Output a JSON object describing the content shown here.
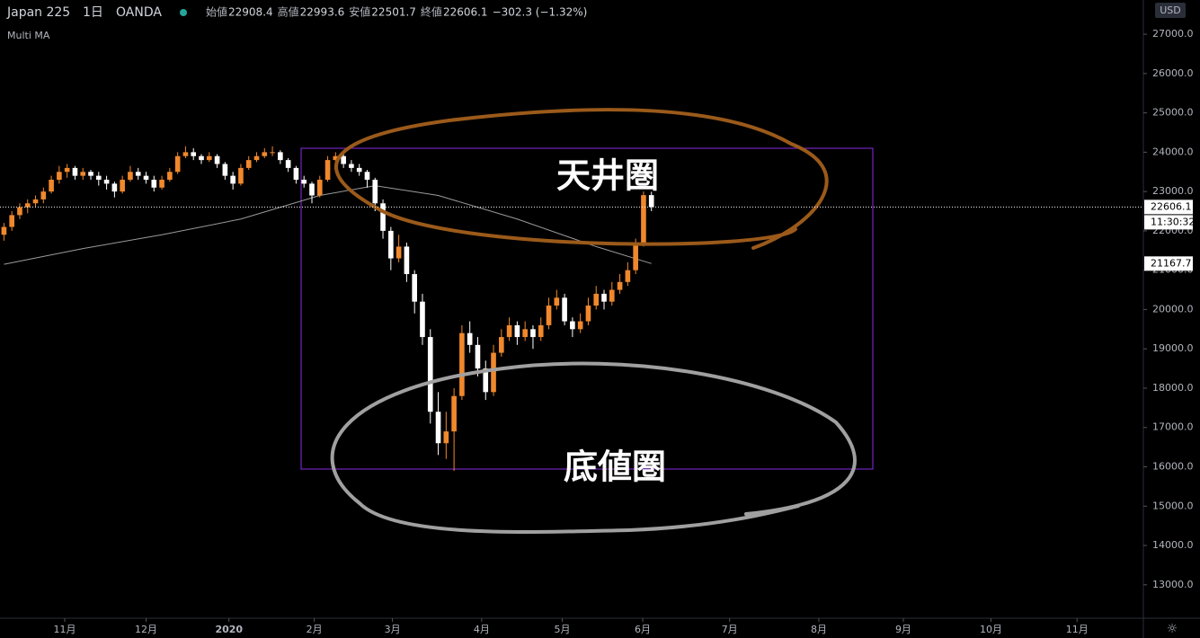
{
  "chart_data": {
    "type": "candlestick",
    "symbol": "Japan 225",
    "interval": "1日",
    "source": "OANDA",
    "ohlc_labels": [
      "始値",
      "高値",
      "安値",
      "終値"
    ],
    "change_label": "−302.3 (−1.32%)",
    "indicator": "Multi MA",
    "currency": "USD",
    "countdown": "11:30:32",
    "annotations": [
      "天井圏",
      "底値圏"
    ],
    "up_color": "#f0882c",
    "down_color": "#ffffff",
    "categories": [
      null,
      null,
      null,
      null,
      null,
      null,
      null,
      null,
      null,
      null,
      null,
      null,
      null,
      null,
      null,
      null,
      null,
      null,
      null,
      null,
      null,
      null,
      null,
      null,
      null,
      null,
      null,
      null,
      null,
      null,
      null,
      null,
      null,
      null,
      null,
      null,
      null,
      null,
      null,
      null,
      null,
      null,
      null,
      null,
      null,
      null,
      null,
      null,
      null,
      null,
      null,
      null,
      null,
      null,
      null,
      null,
      null,
      null,
      null,
      null,
      null,
      null,
      null,
      null,
      null,
      null,
      null,
      null,
      null,
      null,
      null,
      null,
      null,
      null,
      null,
      null,
      null,
      null,
      null,
      null,
      null,
      null,
      null
    ],
    "open": [
      21900,
      22100,
      22400,
      22600,
      22700,
      22800,
      23000,
      23300,
      23500,
      23600,
      23400,
      23500,
      23400,
      23300,
      23200,
      23000,
      23300,
      23500,
      23400,
      23300,
      23100,
      23300,
      23500,
      23900,
      24000,
      23900,
      23800,
      23900,
      23700,
      23400,
      23200,
      23600,
      23800,
      23900,
      24000,
      24000,
      23800,
      23600,
      23300,
      23200,
      22900,
      23300,
      23800,
      23900,
      23700,
      23600,
      23500,
      23300,
      22700,
      22000,
      21300,
      21600,
      20900,
      20200,
      19300,
      17400,
      16600,
      16900,
      17800,
      19400,
      19100,
      18500,
      17900,
      18900,
      19300,
      19600,
      19300,
      19500,
      19300,
      19600,
      20100,
      20300,
      19700,
      19500,
      19700,
      20100,
      20400,
      20200,
      20500,
      20700,
      21000,
      21700,
      22908.4
    ],
    "high": [
      22200,
      22500,
      22700,
      22800,
      22900,
      23100,
      23400,
      23650,
      23700,
      23650,
      23600,
      23550,
      23500,
      23400,
      23250,
      23400,
      23650,
      23600,
      23500,
      23400,
      23400,
      23600,
      24000,
      24150,
      24100,
      23950,
      24000,
      23950,
      23750,
      23500,
      23700,
      23900,
      24000,
      24100,
      24150,
      24050,
      23850,
      23650,
      23400,
      23250,
      23400,
      23900,
      24000,
      23950,
      23800,
      23700,
      23550,
      23350,
      22800,
      22100,
      21900,
      21700,
      21000,
      20400,
      19500,
      17900,
      17400,
      18000,
      19600,
      19700,
      19300,
      18700,
      19100,
      19500,
      19800,
      19700,
      19700,
      19600,
      19800,
      20300,
      20500,
      20400,
      19800,
      19900,
      20300,
      20600,
      20500,
      20700,
      20900,
      21200,
      21800,
      23000,
      22993.6
    ],
    "low": [
      21750,
      22000,
      22300,
      22450,
      22600,
      22700,
      22950,
      23200,
      23350,
      23300,
      23300,
      23300,
      23150,
      23050,
      22850,
      22950,
      23250,
      23300,
      23200,
      23000,
      23050,
      23250,
      23450,
      23850,
      23800,
      23700,
      23750,
      23600,
      23300,
      23050,
      23150,
      23550,
      23750,
      23850,
      23900,
      23700,
      23500,
      23200,
      23100,
      22700,
      22850,
      23250,
      23750,
      23600,
      23500,
      23400,
      23100,
      22500,
      21800,
      21000,
      21200,
      20700,
      19900,
      19100,
      17100,
      16300,
      16200,
      15900,
      17700,
      18900,
      18300,
      17700,
      17800,
      18800,
      19200,
      19100,
      19200,
      19000,
      19200,
      19500,
      20000,
      19600,
      19300,
      19400,
      19600,
      20000,
      20000,
      20100,
      20400,
      20600,
      20900,
      21600,
      22501.7
    ],
    "close": [
      22100,
      22400,
      22600,
      22700,
      22800,
      23000,
      23300,
      23500,
      23600,
      23400,
      23500,
      23400,
      23300,
      23200,
      23000,
      23300,
      23500,
      23400,
      23300,
      23100,
      23300,
      23500,
      23900,
      24000,
      23900,
      23800,
      23900,
      23700,
      23400,
      23200,
      23600,
      23800,
      23900,
      24000,
      24000,
      23800,
      23600,
      23300,
      23200,
      22900,
      23300,
      23800,
      23900,
      23700,
      23600,
      23500,
      23300,
      22700,
      22000,
      21300,
      21600,
      20900,
      20200,
      19300,
      17400,
      16600,
      16900,
      17800,
      19400,
      19100,
      18500,
      17900,
      18900,
      19300,
      19600,
      19300,
      19500,
      19300,
      19600,
      20100,
      20300,
      19700,
      19500,
      19700,
      20100,
      20400,
      20200,
      20500,
      20700,
      21000,
      21700,
      22908.4,
      22606.1
    ],
    "ma": {
      "color": "#9a9a9a",
      "x": [
        0,
        10,
        20,
        30,
        40,
        47,
        55,
        65,
        75,
        82
      ],
      "values": [
        21150,
        21550,
        21900,
        22300,
        22900,
        23150,
        22900,
        22300,
        21600,
        21167.7
      ]
    },
    "xlim": [
      -0.5,
      144.3
    ],
    "xticks": [
      {
        "value": 7.7,
        "label": "11月"
      },
      {
        "value": 18,
        "label": "12月"
      },
      {
        "value": 28.5,
        "label": "2020"
      },
      {
        "value": 39.3,
        "label": "2月"
      },
      {
        "value": 49.2,
        "label": "3月"
      },
      {
        "value": 60.5,
        "label": "4月"
      },
      {
        "value": 70.7,
        "label": "5月"
      },
      {
        "value": 80.9,
        "label": "6月"
      },
      {
        "value": 91.9,
        "label": "7月"
      },
      {
        "value": 103.2,
        "label": "8月"
      },
      {
        "value": 113.9,
        "label": "9月"
      },
      {
        "value": 125,
        "label": "10月"
      },
      {
        "value": 135.9,
        "label": "11月"
      }
    ],
    "ylim": [
      12150,
      27870
    ],
    "yticks": [
      {
        "value": 13000,
        "label": "13000.0"
      },
      {
        "value": 14000,
        "label": "14000.0"
      },
      {
        "value": 15000,
        "label": "15000.0"
      },
      {
        "value": 16000,
        "label": "16000.0"
      },
      {
        "value": 17000,
        "label": "17000.0"
      },
      {
        "value": 18000,
        "label": "18000.0"
      },
      {
        "value": 19000,
        "label": "19000.0"
      },
      {
        "value": 20000,
        "label": "20000.0"
      },
      {
        "value": 21000,
        "label": "21000.0"
      },
      {
        "value": 22000,
        "label": "22000.0"
      },
      {
        "value": 23000,
        "label": "23000.0"
      },
      {
        "value": 24000,
        "label": "24000.0"
      },
      {
        "value": 25000,
        "label": "25000.0"
      },
      {
        "value": 26000,
        "label": "26000.0"
      },
      {
        "value": 27000,
        "label": "27000.0"
      }
    ]
  }
}
